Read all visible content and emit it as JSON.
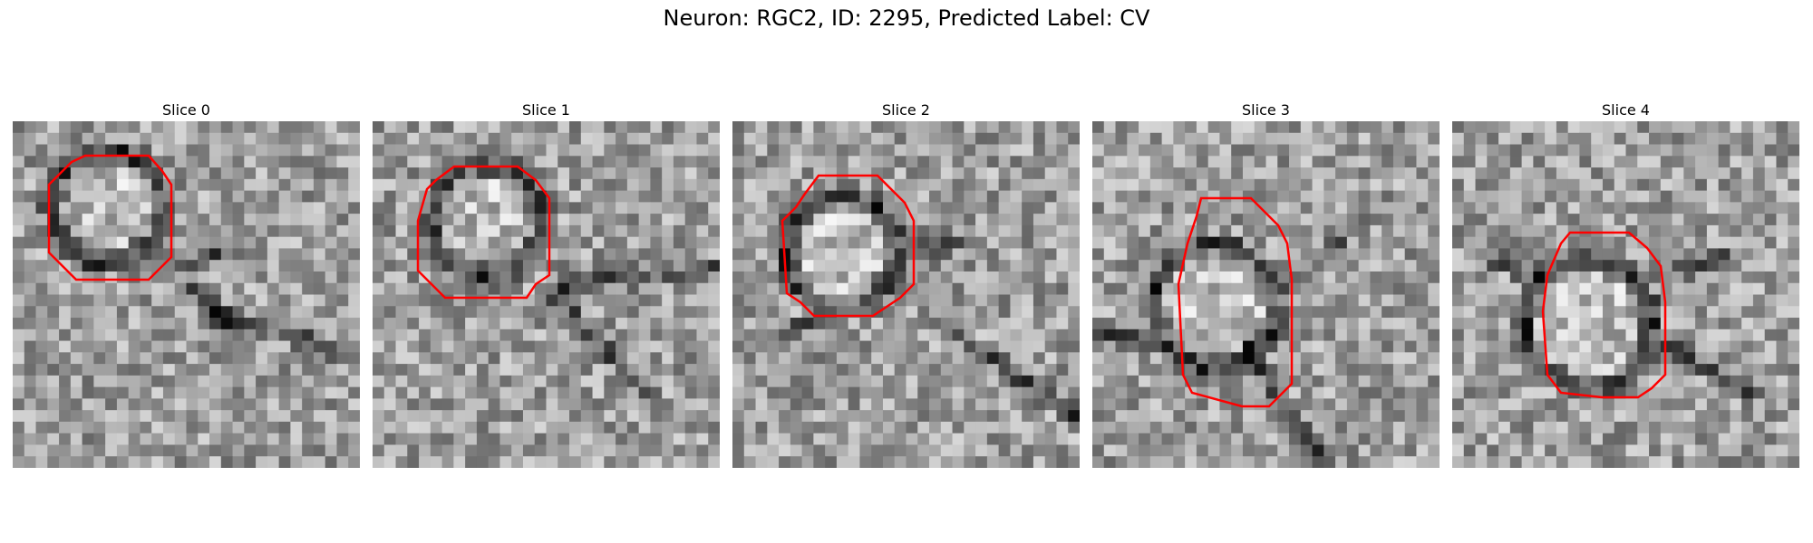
{
  "title": "Neuron: RGC2, ID: 2295, Predicted Label: CV",
  "colors": {
    "contour": "#ff0000",
    "background": "#ffffff"
  },
  "panels": [
    {
      "title": "Slice 0"
    },
    {
      "title": "Slice 1"
    },
    {
      "title": "Slice 2"
    },
    {
      "title": "Slice 3"
    },
    {
      "title": "Slice 4"
    }
  ]
}
